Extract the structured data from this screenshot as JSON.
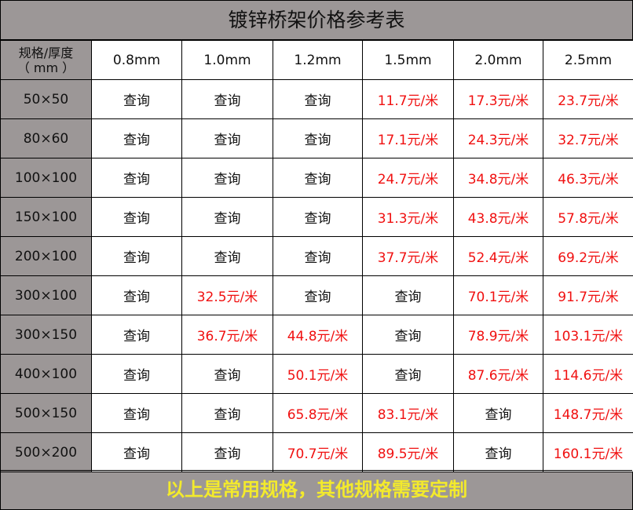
{
  "title": "镀锌桥架价格参考表",
  "header": {
    "spec_label_line1": "规格/厚度",
    "spec_label_line2": "（ mm ）",
    "thickness": [
      "0.8mm",
      "1.0mm",
      "1.2mm",
      "1.5mm",
      "2.0mm",
      "2.5mm"
    ]
  },
  "rows": [
    {
      "spec": "50×50",
      "cells": [
        "查询",
        "查询",
        "查询",
        "11.7元/米",
        "17.3元/米",
        "23.7元/米"
      ]
    },
    {
      "spec": "80×60",
      "cells": [
        "查询",
        "查询",
        "查询",
        "17.1元/米",
        "24.3元/米",
        "32.7元/米"
      ]
    },
    {
      "spec": "100×100",
      "cells": [
        "查询",
        "查询",
        "查询",
        "24.7元/米",
        "34.8元/米",
        "46.3元/米"
      ]
    },
    {
      "spec": "150×100",
      "cells": [
        "查询",
        "查询",
        "查询",
        "31.3元/米",
        "43.8元/米",
        "57.8元/米"
      ]
    },
    {
      "spec": "200×100",
      "cells": [
        "查询",
        "查询",
        "查询",
        "37.7元/米",
        "52.4元/米",
        "69.2元/米"
      ]
    },
    {
      "spec": "300×100",
      "cells": [
        "查询",
        "32.5元/米",
        "查询",
        "查询",
        "70.1元/米",
        "91.7元/米"
      ]
    },
    {
      "spec": "300×150",
      "cells": [
        "查询",
        "36.7元/米",
        "44.8元/米",
        "查询",
        "78.9元/米",
        "103.1元/米"
      ]
    },
    {
      "spec": "400×100",
      "cells": [
        "查询",
        "查询",
        "50.1元/米",
        "查询",
        "87.6元/米",
        "114.6元/米"
      ]
    },
    {
      "spec": "500×150",
      "cells": [
        "查询",
        "查询",
        "65.8元/米",
        "83.1元/米",
        "查询",
        "148.7元/米"
      ]
    },
    {
      "spec": "500×200",
      "cells": [
        "查询",
        "查询",
        "70.7元/米",
        "89.5元/米",
        "查询",
        "160.1元/米"
      ]
    }
  ],
  "footer": "以上是常用规格，其他规格需要定制",
  "colors": {
    "header_gray": "#9c9797",
    "price_red": "#f01010",
    "footer_yellow": "#f3ea2c"
  }
}
